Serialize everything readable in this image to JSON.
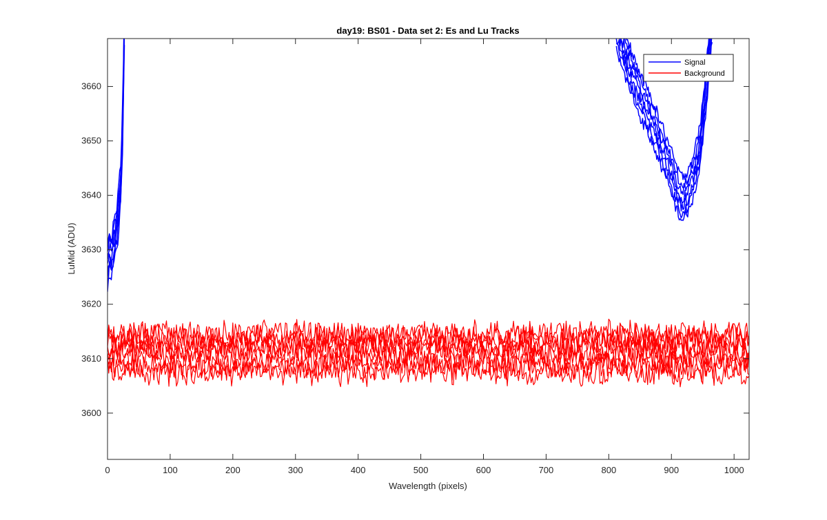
{
  "colors": {
    "signal": "#0000ff",
    "background": "#ff0000",
    "axis": "#262626",
    "frame": "#262626",
    "legend_border": "#262626"
  },
  "chart_data": {
    "type": "line",
    "title": "day19: BS01 - Data set 2: Es and Lu Tracks",
    "xlabel": "Wavelength (pixels)",
    "ylabel": "LuMid (ADU)",
    "xlim": [
      0,
      1024
    ],
    "ylim": [
      3591.5,
      3668.8
    ],
    "xticks": [
      0,
      100,
      200,
      300,
      400,
      500,
      600,
      700,
      800,
      900,
      1000
    ],
    "xtick_labels": [
      "0",
      "100",
      "200",
      "300",
      "400",
      "500",
      "600",
      "700",
      "800",
      "900",
      "1000"
    ],
    "yticks": [
      3600,
      3610,
      3620,
      3630,
      3640,
      3650,
      3660
    ],
    "ytick_labels": [
      "3600",
      "3610",
      "3620",
      "3630",
      "3640",
      "3650",
      "3660"
    ],
    "grid": false,
    "legend_position": "top-right",
    "legend": [
      "Signal",
      "Background"
    ],
    "series": [
      {
        "name": "Signal",
        "role": "signal",
        "color": "#0000ff",
        "tracks": 7,
        "segments": [
          {
            "x": [
              0,
              3,
              6,
              9,
              12,
              15,
              18,
              21,
              24,
              26,
              28
            ],
            "y": [
              3626,
              3629,
              3628,
              3630,
              3632,
              3634,
              3637,
              3642,
              3652,
              3664,
              3680
            ]
          },
          {
            "x": [
              812,
              830,
              850,
              870,
              890,
              905,
              915,
              925,
              935,
              945,
              952,
              958,
              965
            ],
            "y": [
              3670,
              3664,
              3658,
              3653,
              3647,
              3642,
              3639,
              3640,
              3643,
              3648,
              3655,
              3663,
              3672
            ]
          }
        ],
        "track_offsets": [
          0,
          1.3,
          2.6,
          3.9,
          5.2,
          6.5,
          7.8
        ]
      },
      {
        "name": "Background",
        "role": "background",
        "color": "#ff0000",
        "tracks": 8,
        "x_range": [
          0,
          1024
        ],
        "track_means": [
          3607.5,
          3608.6,
          3609.8,
          3611.0,
          3612.0,
          3613.0,
          3614.0,
          3614.6
        ],
        "noise_amplitude": 1.5,
        "observed_range": [
          3601.8,
          3618.9
        ]
      }
    ]
  }
}
